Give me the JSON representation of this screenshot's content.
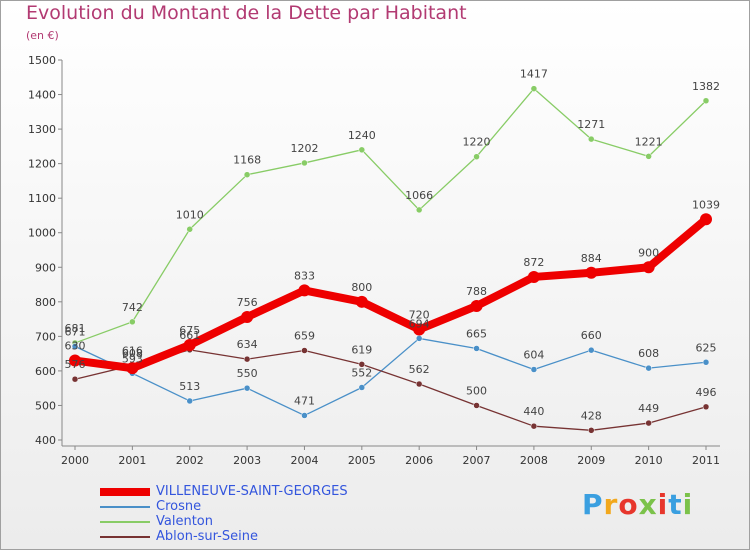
{
  "title": "Evolution du Montant de la Dette par Habitant",
  "subtitle": "(en €)",
  "logo_text": "Proxiti",
  "logo_colors": [
    "#3a9fe0",
    "#f2a81d",
    "#e7362c",
    "#7bc24a",
    "#e7362c",
    "#3a9fe0",
    "#7bc24a"
  ],
  "chart_data": {
    "type": "line",
    "x": [
      "2000",
      "2001",
      "2002",
      "2003",
      "2004",
      "2005",
      "2006",
      "2007",
      "2008",
      "2009",
      "2010",
      "2011"
    ],
    "ylim": [
      400,
      1500
    ],
    "yticks": [
      "400",
      "500",
      "600",
      "700",
      "800",
      "900",
      "1000",
      "1100",
      "1200",
      "1300",
      "1400",
      "1500"
    ],
    "grid": false,
    "legend_position": "bottom-left",
    "series": [
      {
        "name": "VILLENEUVE-SAINT-GEORGES",
        "color": "#ee0000",
        "values": [
          630,
          608,
          675,
          756,
          833,
          800,
          720,
          788,
          872,
          884,
          900,
          1039
        ],
        "labels": [
          "630",
          "608",
          "675",
          "756",
          "833",
          "800",
          "720",
          "788",
          "872",
          "884",
          "900",
          "1039"
        ]
      },
      {
        "name": "Crosne",
        "color": "#4a90c8",
        "values": [
          671,
          593,
          513,
          550,
          471,
          552,
          694,
          665,
          604,
          660,
          608,
          625
        ],
        "labels": [
          "671",
          "593",
          "513",
          "550",
          "471",
          "552",
          "694",
          "665",
          "604",
          "660",
          "608",
          "625"
        ]
      },
      {
        "name": "Valenton",
        "color": "#88cc66",
        "values": [
          681,
          742,
          1010,
          1168,
          1202,
          1240,
          1066,
          1220,
          1417,
          1271,
          1221,
          1382
        ],
        "labels": [
          "681",
          "742",
          "1010",
          "1168",
          "1202",
          "1240",
          "1066",
          "1220",
          "1417",
          "1271",
          "1221",
          "1382"
        ]
      },
      {
        "name": "Ablon-sur-Seine",
        "color": "#773333",
        "values": [
          576,
          616,
          661,
          634,
          659,
          619,
          562,
          500,
          440,
          428,
          449,
          496
        ],
        "labels": [
          "576",
          "616",
          "661",
          "634",
          "659",
          "619",
          "562",
          "500",
          "440",
          "428",
          "449",
          "496"
        ]
      }
    ]
  }
}
